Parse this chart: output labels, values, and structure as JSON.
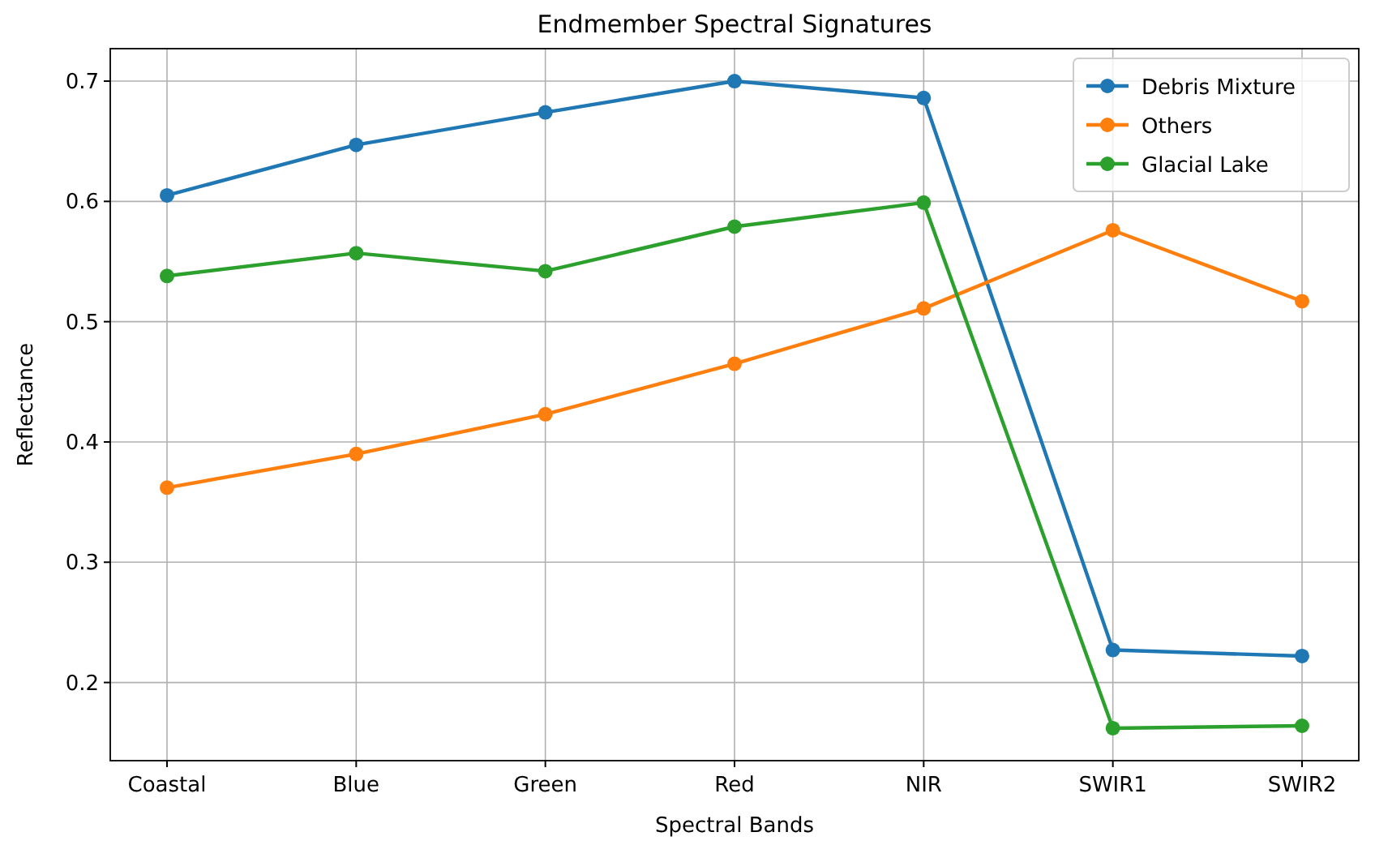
{
  "chart_data": {
    "type": "line",
    "title": "Endmember Spectral Signatures",
    "xlabel": "Spectral Bands",
    "ylabel": "Reflectance",
    "categories": [
      "Coastal",
      "Blue",
      "Green",
      "Red",
      "NIR",
      "SWIR1",
      "SWIR2"
    ],
    "series": [
      {
        "name": "Debris Mixture",
        "color": "#1f77b4",
        "values": [
          0.605,
          0.647,
          0.674,
          0.7,
          0.686,
          0.227,
          0.222
        ]
      },
      {
        "name": "Others",
        "color": "#ff7f0e",
        "values": [
          0.362,
          0.39,
          0.423,
          0.465,
          0.511,
          0.576,
          0.517
        ]
      },
      {
        "name": "Glacial Lake",
        "color": "#2ca02c",
        "values": [
          0.538,
          0.557,
          0.542,
          0.579,
          0.599,
          0.162,
          0.164
        ]
      }
    ],
    "ylim": [
      0.135,
      0.727
    ],
    "yticks": [
      {
        "value": 0.2,
        "label": "0.2"
      },
      {
        "value": 0.3,
        "label": "0.3"
      },
      {
        "value": 0.4,
        "label": "0.4"
      },
      {
        "value": 0.5,
        "label": "0.5"
      },
      {
        "value": 0.6,
        "label": "0.6"
      },
      {
        "value": 0.7,
        "label": "0.7"
      }
    ],
    "grid": true,
    "legend": "top right",
    "marker": "circle",
    "line_style": "solid"
  }
}
